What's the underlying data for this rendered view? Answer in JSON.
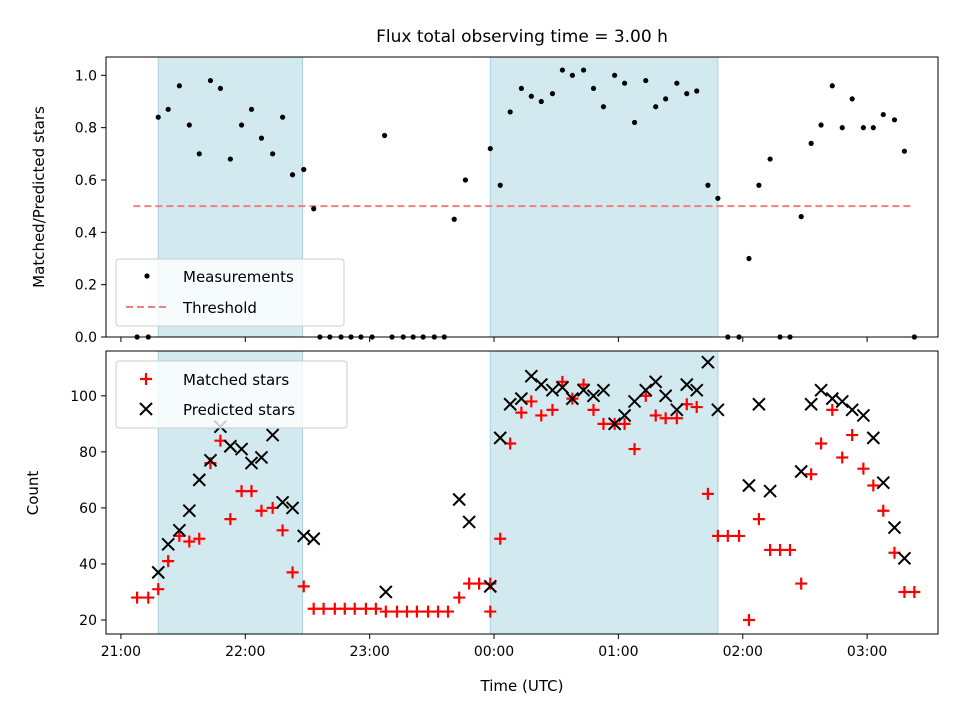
{
  "chart_data": [
    {
      "type": "scatter",
      "title": "Flux total observing time = 3.00 h",
      "xlabel": "",
      "ylabel": "Matched/Predicted stars",
      "xlim": [
        20.88,
        27.57
      ],
      "ylim": [
        0.0,
        1.07
      ],
      "x_ticks": [
        21,
        22,
        23,
        24,
        25,
        26,
        27
      ],
      "x_ticklabels": [
        "",
        "",
        "",
        "",
        "",
        "",
        ""
      ],
      "y_ticks": [
        0.0,
        0.2,
        0.4,
        0.6,
        0.8,
        1.0
      ],
      "y_ticklabels": [
        "0.0",
        "0.2",
        "0.4",
        "0.6",
        "0.8",
        "1.0"
      ],
      "shaded_spans": [
        [
          21.3,
          22.46
        ],
        [
          23.97,
          25.8
        ]
      ],
      "shade_color": "#d3e9f0",
      "legend": {
        "position": "lower-left",
        "entries": [
          "Measurements",
          "Threshold"
        ]
      },
      "threshold": {
        "name": "Threshold",
        "y": 0.5,
        "x_range": [
          21.1,
          27.38
        ],
        "color": "#f08080"
      },
      "series": [
        {
          "name": "Measurements",
          "marker": "dot",
          "color": "#000000",
          "points": [
            [
              21.13,
              0.0
            ],
            [
              21.22,
              0.0
            ],
            [
              21.3,
              0.84
            ],
            [
              21.38,
              0.87
            ],
            [
              21.47,
              0.96
            ],
            [
              21.55,
              0.81
            ],
            [
              21.63,
              0.7
            ],
            [
              21.72,
              0.98
            ],
            [
              21.8,
              0.95
            ],
            [
              21.88,
              0.68
            ],
            [
              21.97,
              0.81
            ],
            [
              22.05,
              0.87
            ],
            [
              22.13,
              0.76
            ],
            [
              22.22,
              0.7
            ],
            [
              22.3,
              0.84
            ],
            [
              22.38,
              0.62
            ],
            [
              22.47,
              0.64
            ],
            [
              22.55,
              0.49
            ],
            [
              22.6,
              0.0
            ],
            [
              22.68,
              0.0
            ],
            [
              22.77,
              0.0
            ],
            [
              22.85,
              0.0
            ],
            [
              22.93,
              0.0
            ],
            [
              23.02,
              0.0
            ],
            [
              23.12,
              0.77
            ],
            [
              23.18,
              0.0
            ],
            [
              23.27,
              0.0
            ],
            [
              23.35,
              0.0
            ],
            [
              23.43,
              0.0
            ],
            [
              23.52,
              0.0
            ],
            [
              23.6,
              0.0
            ],
            [
              23.68,
              0.45
            ],
            [
              23.77,
              0.6
            ],
            [
              23.97,
              0.72
            ],
            [
              24.05,
              0.58
            ],
            [
              24.13,
              0.86
            ],
            [
              24.22,
              0.95
            ],
            [
              24.3,
              0.92
            ],
            [
              24.38,
              0.9
            ],
            [
              24.47,
              0.93
            ],
            [
              24.55,
              1.02
            ],
            [
              24.63,
              1.0
            ],
            [
              24.72,
              1.02
            ],
            [
              24.8,
              0.95
            ],
            [
              24.88,
              0.88
            ],
            [
              24.97,
              1.0
            ],
            [
              25.05,
              0.97
            ],
            [
              25.13,
              0.82
            ],
            [
              25.22,
              0.98
            ],
            [
              25.3,
              0.88
            ],
            [
              25.38,
              0.91
            ],
            [
              25.47,
              0.97
            ],
            [
              25.55,
              0.93
            ],
            [
              25.63,
              0.94
            ],
            [
              25.72,
              0.58
            ],
            [
              25.8,
              0.53
            ],
            [
              25.88,
              0.0
            ],
            [
              25.97,
              0.0
            ],
            [
              26.05,
              0.3
            ],
            [
              26.13,
              0.58
            ],
            [
              26.22,
              0.68
            ],
            [
              26.3,
              0.0
            ],
            [
              26.38,
              0.0
            ],
            [
              26.47,
              0.46
            ],
            [
              26.55,
              0.74
            ],
            [
              26.63,
              0.81
            ],
            [
              26.72,
              0.96
            ],
            [
              26.8,
              0.8
            ],
            [
              26.88,
              0.91
            ],
            [
              26.97,
              0.8
            ],
            [
              27.05,
              0.8
            ],
            [
              27.13,
              0.85
            ],
            [
              27.22,
              0.83
            ],
            [
              27.3,
              0.71
            ],
            [
              27.38,
              0.0
            ]
          ]
        }
      ]
    },
    {
      "type": "scatter",
      "title": "",
      "xlabel": "Time (UTC)",
      "ylabel": "Count",
      "xlim": [
        20.88,
        27.57
      ],
      "ylim": [
        15,
        116
      ],
      "x_ticks": [
        21,
        22,
        23,
        24,
        25,
        26,
        27
      ],
      "x_ticklabels": [
        "21:00",
        "22:00",
        "23:00",
        "00:00",
        "01:00",
        "02:00",
        "03:00"
      ],
      "y_ticks": [
        20,
        40,
        60,
        80,
        100
      ],
      "y_ticklabels": [
        "20",
        "40",
        "60",
        "80",
        "100"
      ],
      "shaded_spans": [
        [
          21.3,
          22.46
        ],
        [
          23.97,
          25.8
        ]
      ],
      "shade_color": "#d3e9f0",
      "legend": {
        "position": "top-left",
        "entries": [
          "Matched stars",
          "Predicted stars"
        ]
      },
      "series": [
        {
          "name": "Matched stars",
          "marker": "plus",
          "color": "#ff0000",
          "points": [
            [
              21.13,
              28
            ],
            [
              21.22,
              28
            ],
            [
              21.3,
              31
            ],
            [
              21.38,
              41
            ],
            [
              21.47,
              50
            ],
            [
              21.55,
              48
            ],
            [
              21.63,
              49
            ],
            [
              21.72,
              76
            ],
            [
              21.8,
              84
            ],
            [
              21.88,
              56
            ],
            [
              21.97,
              66
            ],
            [
              22.05,
              66
            ],
            [
              22.13,
              59
            ],
            [
              22.22,
              60
            ],
            [
              22.3,
              52
            ],
            [
              22.38,
              37
            ],
            [
              22.47,
              32
            ],
            [
              22.55,
              24
            ],
            [
              22.63,
              24
            ],
            [
              22.72,
              24
            ],
            [
              22.8,
              24
            ],
            [
              22.88,
              24
            ],
            [
              22.97,
              24
            ],
            [
              23.05,
              24
            ],
            [
              23.13,
              23
            ],
            [
              23.22,
              23
            ],
            [
              23.3,
              23
            ],
            [
              23.38,
              23
            ],
            [
              23.47,
              23
            ],
            [
              23.55,
              23
            ],
            [
              23.63,
              23
            ],
            [
              23.72,
              28
            ],
            [
              23.8,
              33
            ],
            [
              23.88,
              33
            ],
            [
              23.97,
              33
            ],
            [
              23.97,
              23
            ],
            [
              24.05,
              49
            ],
            [
              24.13,
              83
            ],
            [
              24.22,
              94
            ],
            [
              24.3,
              98
            ],
            [
              24.38,
              93
            ],
            [
              24.47,
              95
            ],
            [
              24.55,
              105
            ],
            [
              24.63,
              99
            ],
            [
              24.72,
              104
            ],
            [
              24.8,
              95
            ],
            [
              24.88,
              90
            ],
            [
              24.97,
              90
            ],
            [
              25.05,
              90
            ],
            [
              25.13,
              81
            ],
            [
              25.22,
              100
            ],
            [
              25.3,
              93
            ],
            [
              25.38,
              92
            ],
            [
              25.47,
              92
            ],
            [
              25.55,
              97
            ],
            [
              25.63,
              96
            ],
            [
              25.72,
              65
            ],
            [
              25.8,
              50
            ],
            [
              25.88,
              50
            ],
            [
              25.97,
              50
            ],
            [
              26.05,
              20
            ],
            [
              26.13,
              56
            ],
            [
              26.22,
              45
            ],
            [
              26.3,
              45
            ],
            [
              26.38,
              45
            ],
            [
              26.47,
              33
            ],
            [
              26.55,
              72
            ],
            [
              26.63,
              83
            ],
            [
              26.72,
              95
            ],
            [
              26.8,
              78
            ],
            [
              26.88,
              86
            ],
            [
              26.97,
              74
            ],
            [
              27.05,
              68
            ],
            [
              27.13,
              59
            ],
            [
              27.22,
              44
            ],
            [
              27.3,
              30
            ],
            [
              27.38,
              30
            ]
          ]
        },
        {
          "name": "Predicted stars",
          "marker": "x",
          "color": "#000000",
          "points": [
            [
              21.3,
              37
            ],
            [
              21.38,
              47
            ],
            [
              21.47,
              52
            ],
            [
              21.55,
              59
            ],
            [
              21.63,
              70
            ],
            [
              21.72,
              77
            ],
            [
              21.8,
              89
            ],
            [
              21.88,
              82
            ],
            [
              21.97,
              81
            ],
            [
              22.05,
              76
            ],
            [
              22.13,
              78
            ],
            [
              22.22,
              86
            ],
            [
              22.3,
              62
            ],
            [
              22.38,
              60
            ],
            [
              22.47,
              50
            ],
            [
              22.55,
              49
            ],
            [
              23.13,
              30
            ],
            [
              23.72,
              63
            ],
            [
              23.8,
              55
            ],
            [
              23.97,
              32
            ],
            [
              24.05,
              85
            ],
            [
              24.13,
              97
            ],
            [
              24.22,
              99
            ],
            [
              24.3,
              107
            ],
            [
              24.38,
              104
            ],
            [
              24.47,
              102
            ],
            [
              24.55,
              103
            ],
            [
              24.63,
              99
            ],
            [
              24.72,
              102
            ],
            [
              24.8,
              100
            ],
            [
              24.88,
              102
            ],
            [
              24.97,
              90
            ],
            [
              25.05,
              93
            ],
            [
              25.13,
              98
            ],
            [
              25.22,
              102
            ],
            [
              25.3,
              105
            ],
            [
              25.38,
              100
            ],
            [
              25.47,
              95
            ],
            [
              25.55,
              104
            ],
            [
              25.63,
              102
            ],
            [
              25.72,
              112
            ],
            [
              25.8,
              95
            ],
            [
              26.05,
              68
            ],
            [
              26.13,
              97
            ],
            [
              26.22,
              66
            ],
            [
              26.47,
              73
            ],
            [
              26.55,
              97
            ],
            [
              26.63,
              102
            ],
            [
              26.72,
              99
            ],
            [
              26.8,
              98
            ],
            [
              26.88,
              95
            ],
            [
              26.97,
              93
            ],
            [
              27.05,
              85
            ],
            [
              27.13,
              69
            ],
            [
              27.22,
              53
            ],
            [
              27.3,
              42
            ]
          ]
        }
      ]
    }
  ]
}
